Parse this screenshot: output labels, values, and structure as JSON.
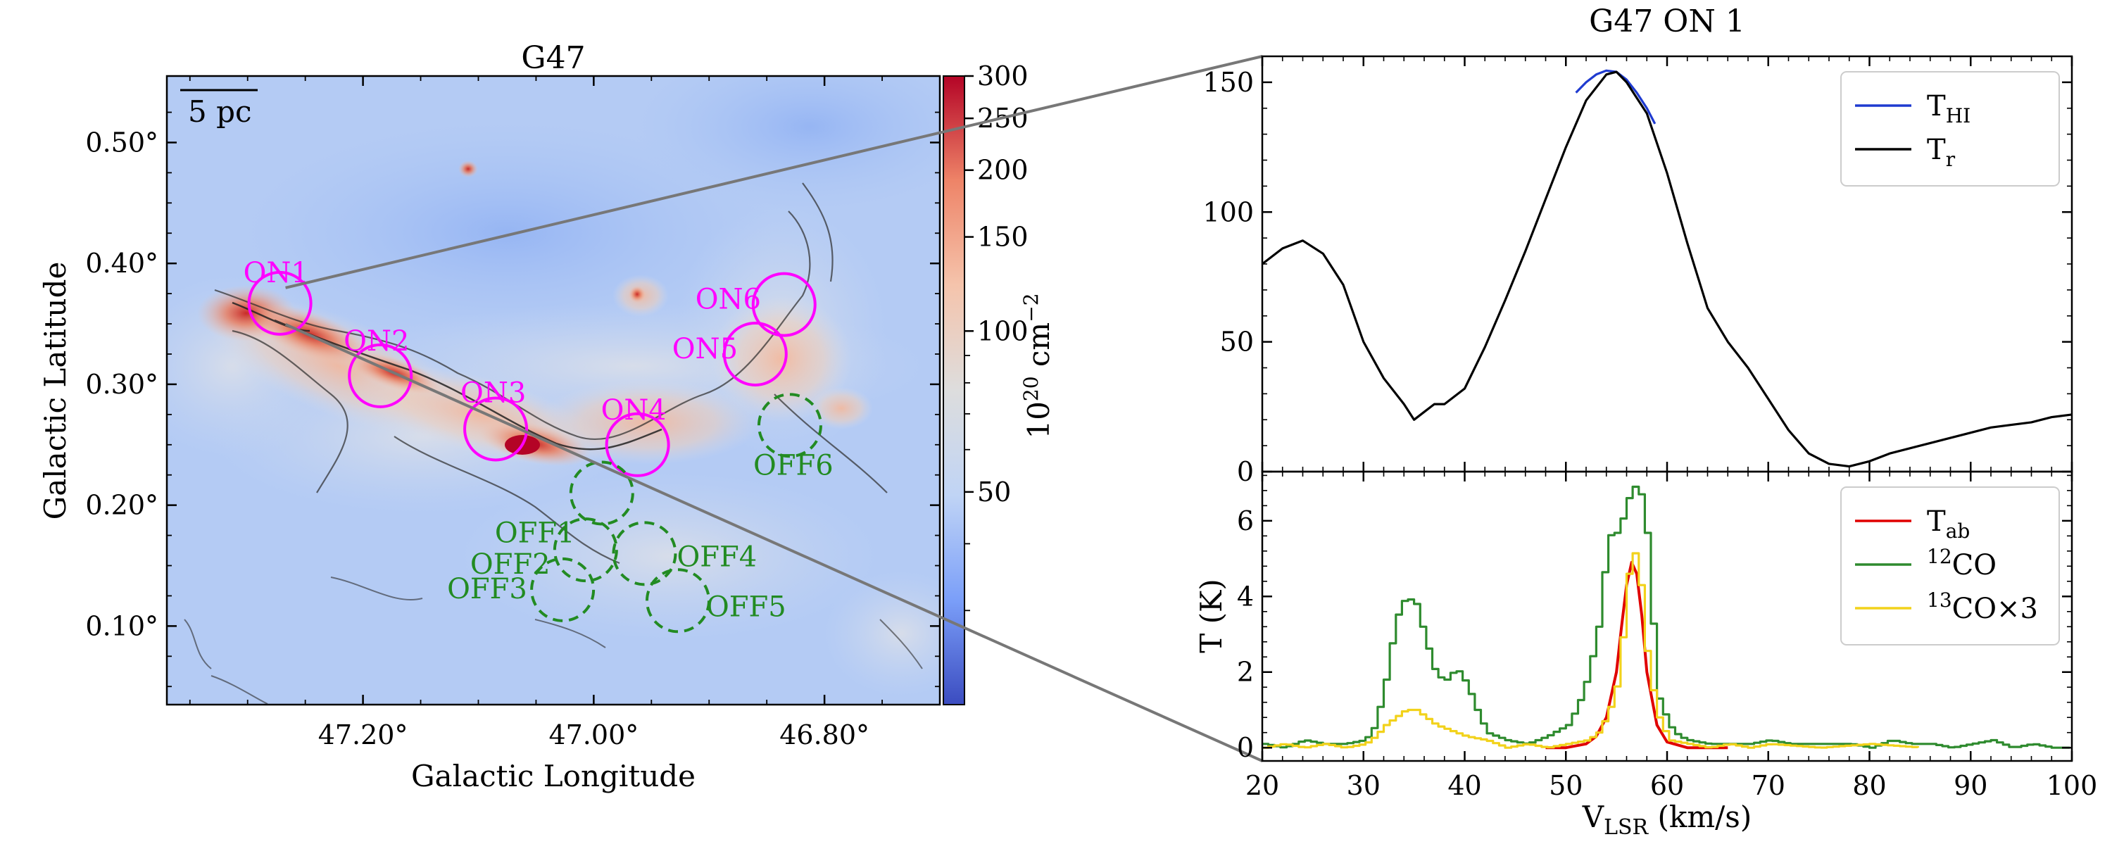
{
  "map": {
    "title": "G47",
    "xlabel": "Galactic Longitude",
    "ylabel": "Galactic Latitude",
    "x_ticks": [
      "47.20°",
      "47.00°",
      "46.80°"
    ],
    "x_tick_values": [
      47.2,
      47.0,
      46.8
    ],
    "y_ticks": [
      "0.10°",
      "0.20°",
      "0.30°",
      "0.40°",
      "0.50°"
    ],
    "y_tick_values": [
      0.1,
      0.2,
      0.3,
      0.4,
      0.5
    ],
    "xlim": [
      47.37,
      46.7
    ],
    "ylim": [
      0.035,
      0.555
    ],
    "scalebar_label": "5 pc",
    "colorbar": {
      "ticks": [
        "300",
        "250",
        "200",
        "150",
        "100",
        "50"
      ],
      "tick_values": [
        300,
        250,
        200,
        150,
        100,
        50
      ],
      "range": [
        20,
        300
      ],
      "label": "10",
      "label_sup": "20",
      "label_rest": " cm",
      "label_sup2": "−2",
      "colors": [
        "#3b4cc0",
        "#7b9ff9",
        "#c0d4f5",
        "#dddddd",
        "#f5c4ac",
        "#ee8468",
        "#b40426"
      ]
    },
    "on_regions": [
      {
        "name": "ON1",
        "l": 47.272,
        "b": 0.367
      },
      {
        "name": "ON2",
        "l": 47.185,
        "b": 0.307
      },
      {
        "name": "ON3",
        "l": 47.085,
        "b": 0.263
      },
      {
        "name": "ON4",
        "l": 46.962,
        "b": 0.25
      },
      {
        "name": "ON5",
        "l": 46.86,
        "b": 0.325
      },
      {
        "name": "ON6",
        "l": 46.835,
        "b": 0.366
      }
    ],
    "off_regions": [
      {
        "name": "OFF1",
        "l": 46.993,
        "b": 0.21
      },
      {
        "name": "OFF2",
        "l": 47.007,
        "b": 0.163
      },
      {
        "name": "OFF3",
        "l": 47.027,
        "b": 0.13
      },
      {
        "name": "OFF4",
        "l": 46.956,
        "b": 0.16
      },
      {
        "name": "OFF5",
        "l": 46.927,
        "b": 0.121
      },
      {
        "name": "OFF6",
        "l": 46.83,
        "b": 0.266
      }
    ],
    "region_colors": {
      "on": "#ff00ff",
      "off": "#228b22"
    }
  },
  "chart_data": [
    {
      "type": "line",
      "title": "G47 ON 1",
      "ylim": [
        0,
        160
      ],
      "xlim": [
        20,
        100
      ],
      "y_ticks": [
        "0",
        "50",
        "100",
        "150"
      ],
      "y_tick_values": [
        0,
        50,
        100,
        150
      ],
      "legend": "top-right",
      "series": [
        {
          "name": "T",
          "sub": "HI",
          "color": "#1f3bd0",
          "x": [
            51,
            52,
            53,
            54,
            55,
            56,
            57,
            58,
            58.8
          ],
          "y": [
            146,
            150,
            153,
            154.5,
            154,
            151,
            146,
            140,
            134
          ]
        },
        {
          "name": "T",
          "sub": "r",
          "color": "#000000",
          "x": [
            20,
            22,
            24,
            26,
            28,
            30,
            32,
            34,
            35,
            36,
            37,
            38,
            40,
            42,
            44,
            46,
            48,
            50,
            52,
            54,
            55,
            56,
            58,
            60,
            62,
            64,
            66,
            68,
            70,
            72,
            74,
            76,
            78,
            80,
            82,
            84,
            86,
            88,
            90,
            92,
            94,
            96,
            98,
            100
          ],
          "y": [
            80,
            86,
            89,
            84,
            72,
            50,
            36,
            26,
            20,
            23,
            26,
            26,
            32,
            48,
            66,
            85,
            105,
            125,
            143,
            153,
            154,
            150,
            138,
            115,
            88,
            63,
            50,
            40,
            28,
            16,
            7,
            3,
            2,
            4,
            7,
            9,
            11,
            13,
            15,
            17,
            18,
            19,
            21,
            22
          ]
        }
      ]
    },
    {
      "type": "line",
      "xlabel": "V",
      "xlabel_sub": "LSR",
      "xlabel_rest": " (km/s)",
      "ylabel": "T (K)",
      "xlim": [
        20,
        100
      ],
      "ylim": [
        -0.35,
        7.3
      ],
      "x_ticks": [
        "20",
        "30",
        "40",
        "50",
        "60",
        "70",
        "80",
        "90",
        "100"
      ],
      "x_tick_values": [
        20,
        30,
        40,
        50,
        60,
        70,
        80,
        90,
        100
      ],
      "y_ticks": [
        "0",
        "2",
        "4",
        "6"
      ],
      "y_tick_values": [
        0,
        2,
        4,
        6
      ],
      "legend": "top-right",
      "series": [
        {
          "name": "T",
          "sub": "ab",
          "color": "#e00000",
          "x": [
            48,
            50,
            52,
            53,
            54,
            55,
            55.5,
            56,
            56.5,
            57,
            57.5,
            58,
            59,
            60,
            62,
            64,
            66
          ],
          "y": [
            0,
            0,
            0.1,
            0.3,
            0.8,
            2.0,
            3.2,
            4.3,
            4.9,
            4.6,
            3.5,
            2.0,
            0.6,
            0.15,
            0,
            0,
            0
          ]
        },
        {
          "name": "CO",
          "sup": "12",
          "color": "#2e8b2e",
          "x": [
            20,
            22,
            24,
            26,
            28,
            30,
            31,
            32,
            33,
            34,
            35,
            36,
            37,
            38,
            39,
            40,
            41,
            42,
            44,
            46,
            48,
            50,
            51,
            52,
            53,
            54,
            55,
            56,
            56.5,
            57,
            57.5,
            58,
            58.5,
            59,
            60,
            61,
            62,
            64,
            66,
            68,
            70,
            72,
            75,
            78,
            80,
            82,
            84,
            86,
            88,
            90,
            92,
            94,
            96,
            98,
            100
          ],
          "y": [
            0.1,
            0.0,
            0.2,
            0.1,
            0.1,
            0.2,
            0.6,
            1.8,
            3.4,
            4.0,
            3.8,
            2.8,
            1.9,
            1.8,
            2.1,
            1.7,
            1.0,
            0.4,
            0.2,
            0.1,
            0.3,
            0.6,
            1.1,
            1.9,
            3.2,
            5.6,
            5.7,
            6.6,
            6.9,
            6.9,
            6.4,
            5.2,
            2.8,
            1.3,
            0.6,
            0.3,
            0.2,
            0.1,
            0.1,
            0.1,
            0.2,
            0.1,
            0.1,
            0.1,
            0.0,
            0.2,
            0.1,
            0.1,
            0.0,
            0.1,
            0.2,
            0.0,
            0.1,
            0.0,
            0.0
          ]
        },
        {
          "name": "CO×3",
          "sup": "13",
          "color": "#f2d21b",
          "x": [
            20,
            22,
            24,
            26,
            28,
            30,
            31,
            32,
            33,
            34,
            35,
            36,
            37,
            38,
            39,
            40,
            42,
            44,
            46,
            48,
            50,
            52,
            53,
            54,
            55,
            55.5,
            56,
            56.5,
            57,
            57.5,
            58,
            59,
            60,
            62,
            64,
            66,
            68,
            70,
            75,
            80,
            85
          ],
          "y": [
            0.0,
            0.1,
            0.0,
            0.1,
            0.0,
            0.1,
            0.3,
            0.6,
            0.8,
            1.0,
            1.0,
            0.8,
            0.6,
            0.5,
            0.4,
            0.3,
            0.2,
            0.0,
            0.1,
            0.0,
            0.1,
            0.2,
            0.4,
            0.9,
            1.8,
            3.2,
            4.6,
            5.2,
            4.9,
            3.4,
            2.0,
            0.8,
            0.2,
            0.1,
            0.0,
            0.1,
            0.0,
            0.1,
            0.0,
            0.1,
            0.0
          ]
        }
      ]
    }
  ]
}
